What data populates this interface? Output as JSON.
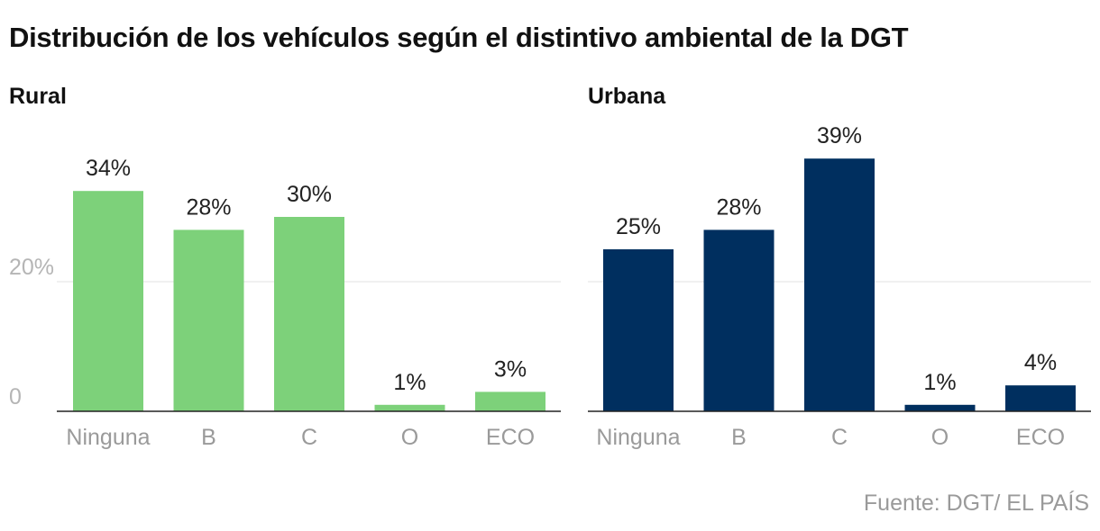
{
  "title": "Distribución de los vehículos según el distintivo ambiental de la DGT",
  "source": "Fuente: DGT/ EL PAÍS",
  "chart_data": [
    {
      "type": "bar",
      "title": "Rural",
      "categories": [
        "Ninguna",
        "B",
        "C",
        "O",
        "ECO"
      ],
      "values": [
        34,
        28,
        30,
        1,
        3
      ],
      "value_labels": [
        "34%",
        "28%",
        "30%",
        "1%",
        "3%"
      ],
      "yticks": [
        {
          "value": 0,
          "label": "0"
        },
        {
          "value": 20,
          "label": "20%"
        }
      ],
      "ylim": [
        0,
        40
      ],
      "color": "#7dd17a",
      "xlabel": "",
      "ylabel": ""
    },
    {
      "type": "bar",
      "title": "Urbana",
      "categories": [
        "Ninguna",
        "B",
        "C",
        "O",
        "ECO"
      ],
      "values": [
        25,
        28,
        39,
        1,
        4
      ],
      "value_labels": [
        "25%",
        "28%",
        "39%",
        "1%",
        "4%"
      ],
      "yticks": [
        {
          "value": 0,
          "label": ""
        },
        {
          "value": 20,
          "label": ""
        }
      ],
      "ylim": [
        0,
        40
      ],
      "color": "#002f5f",
      "xlabel": "",
      "ylabel": ""
    }
  ]
}
